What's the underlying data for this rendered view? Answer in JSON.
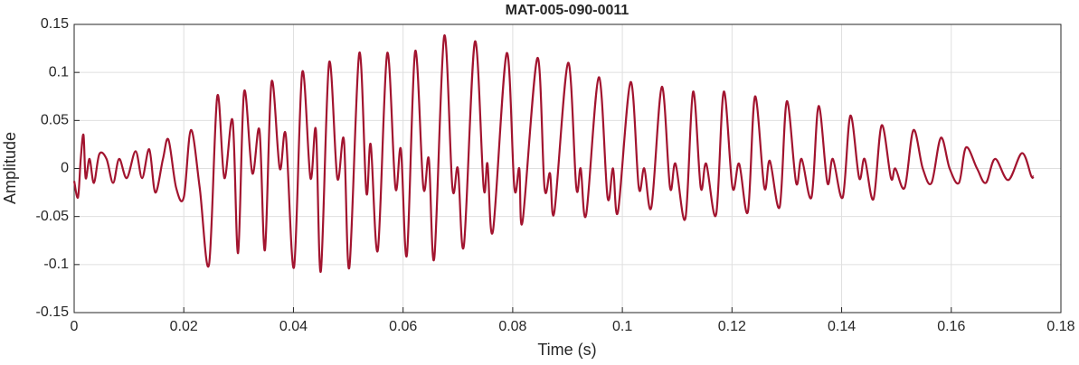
{
  "chart_data": {
    "type": "line",
    "title": "MAT-005-090-0011",
    "xlabel": "Time (s)",
    "ylabel": "Amplitude",
    "xlim": [
      0,
      0.18
    ],
    "ylim": [
      -0.15,
      0.15
    ],
    "xticks": [
      0,
      0.02,
      0.04,
      0.06,
      0.08,
      0.1,
      0.12,
      0.14,
      0.16,
      0.18
    ],
    "yticks": [
      -0.15,
      -0.1,
      -0.05,
      0,
      0.05,
      0.1,
      0.15
    ],
    "grid": true,
    "x": [
      0,
      0.0007,
      0.0012,
      0.0017,
      0.0021,
      0.0028,
      0.0036,
      0.0046,
      0.0059,
      0.0071,
      0.0082,
      0.0096,
      0.0112,
      0.0124,
      0.0137,
      0.0148,
      0.0162,
      0.0172,
      0.0186,
      0.02,
      0.0213,
      0.0229,
      0.0246,
      0.0261,
      0.0274,
      0.0289,
      0.0299,
      0.031,
      0.0325,
      0.0338,
      0.0348,
      0.036,
      0.0375,
      0.0386,
      0.0401,
      0.0416,
      0.0431,
      0.0441,
      0.045,
      0.0465,
      0.048,
      0.0492,
      0.0502,
      0.052,
      0.0533,
      0.0541,
      0.0554,
      0.0571,
      0.0586,
      0.0596,
      0.0607,
      0.0622,
      0.0637,
      0.0647,
      0.0657,
      0.0675,
      0.069,
      0.07,
      0.0711,
      0.0731,
      0.0747,
      0.0754,
      0.0764,
      0.0789,
      0.0803,
      0.0812,
      0.0818,
      0.0845,
      0.0858,
      0.0868,
      0.0876,
      0.0901,
      0.0916,
      0.0924,
      0.0934,
      0.0957,
      0.0973,
      0.0983,
      0.0992,
      0.1015,
      0.103,
      0.104,
      0.1053,
      0.1072,
      0.1087,
      0.1097,
      0.1115,
      0.1129,
      0.1143,
      0.1153,
      0.1171,
      0.1185,
      0.1201,
      0.1213,
      0.1229,
      0.1242,
      0.1259,
      0.1269,
      0.1287,
      0.13,
      0.1317,
      0.1327,
      0.1345,
      0.1358,
      0.1374,
      0.1384,
      0.1402,
      0.1416,
      0.1432,
      0.1442,
      0.1458,
      0.1473,
      0.149,
      0.1498,
      0.1515,
      0.1531,
      0.1548,
      0.1564,
      0.1581,
      0.1597,
      0.1614,
      0.1627,
      0.1647,
      0.1663,
      0.168,
      0.1704,
      0.1729,
      0.1746,
      0.175
    ],
    "series": [
      {
        "name": "Amplitude",
        "color": "#a2142f",
        "values": [
          -0.013,
          -0.03,
          0.01,
          0.035,
          -0.01,
          0.01,
          -0.015,
          0.015,
          0.01,
          -0.015,
          0.01,
          -0.01,
          0.018,
          -0.01,
          0.02,
          -0.025,
          0.01,
          0.03,
          -0.02,
          -0.03,
          0.04,
          -0.02,
          -0.1,
          0.075,
          -0.01,
          0.05,
          -0.088,
          0.08,
          -0.005,
          0.04,
          -0.085,
          0.09,
          0.0,
          0.035,
          -0.103,
          0.1,
          -0.01,
          0.04,
          -0.107,
          0.11,
          -0.01,
          0.03,
          -0.103,
          0.12,
          -0.025,
          0.025,
          -0.085,
          0.12,
          -0.02,
          0.02,
          -0.09,
          0.122,
          -0.02,
          0.01,
          -0.093,
          0.138,
          -0.02,
          0.0,
          -0.08,
          0.132,
          -0.02,
          0.005,
          -0.065,
          0.12,
          -0.02,
          0.0,
          -0.055,
          0.115,
          -0.02,
          -0.005,
          -0.045,
          0.11,
          -0.02,
          0.0,
          -0.048,
          0.095,
          -0.03,
          0.0,
          -0.045,
          0.09,
          -0.02,
          0.0,
          -0.04,
          0.085,
          -0.02,
          0.005,
          -0.052,
          0.08,
          -0.02,
          0.005,
          -0.048,
          0.08,
          -0.02,
          0.005,
          -0.045,
          0.075,
          -0.02,
          0.008,
          -0.04,
          0.07,
          -0.015,
          0.01,
          -0.03,
          0.065,
          -0.015,
          0.01,
          -0.03,
          0.055,
          -0.01,
          0.01,
          -0.032,
          0.045,
          -0.01,
          0.0,
          -0.02,
          0.04,
          0.0,
          -0.015,
          0.032,
          0.0,
          -0.015,
          0.022,
          0.0,
          -0.015,
          0.01,
          -0.012,
          0.016,
          -0.008,
          -0.008
        ]
      }
    ]
  }
}
